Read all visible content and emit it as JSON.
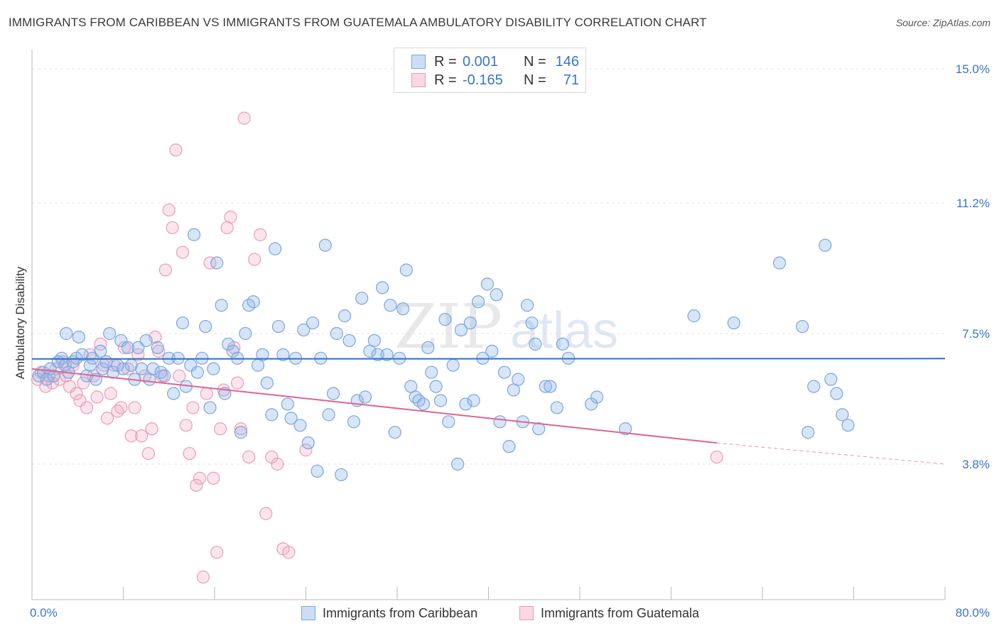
{
  "title": "IMMIGRANTS FROM CARIBBEAN VS IMMIGRANTS FROM GUATEMALA AMBULATORY DISABILITY CORRELATION CHART",
  "source": "Source: ZipAtlas.com",
  "watermark": "ZIPatlas",
  "stats": [
    {
      "r_label": "R =",
      "r_value": "0.001",
      "n_label": "N =",
      "n_value": "146",
      "color": "#8fb5e8"
    },
    {
      "r_label": "R =",
      "r_value": "-0.165",
      "n_label": "N =",
      "n_value": "71",
      "color": "#f2a8c0"
    }
  ],
  "legend": [
    {
      "label": "Immigrants from Caribbean",
      "color": "#8fb5e8"
    },
    {
      "label": "Immigrants from Guatemala",
      "color": "#f2a8c0"
    }
  ],
  "colors": {
    "caribbean_fill": "rgba(143,181,232,0.35)",
    "caribbean_stroke": "#7aa6e0",
    "caribbean_line": "#2f6fc4",
    "guatemala_fill": "rgba(242,168,192,0.30)",
    "guatemala_stroke": "#ef9ab6",
    "guatemala_line": "#e0648f",
    "tick_label": "#3b73c8",
    "grid": "#e3e3e3"
  },
  "chart_data": {
    "type": "scatter",
    "title": "IMMIGRANTS FROM CARIBBEAN VS IMMIGRANTS FROM GUATEMALA AMBULATORY DISABILITY CORRELATION CHART",
    "xlabel": "",
    "ylabel": "Ambulatory Disability",
    "xlim": [
      0,
      80
    ],
    "ylim": [
      0,
      15.5
    ],
    "x_tick_labels": [
      "0.0%",
      "80.0%"
    ],
    "y_ticks": [
      3.8,
      7.5,
      11.2,
      15.0
    ],
    "y_tick_labels": [
      "3.8%",
      "7.5%",
      "11.2%",
      "15.0%"
    ],
    "grid": "horizontal dashed",
    "legend_position": "bottom-center",
    "series": [
      {
        "name": "Immigrants from Caribbean",
        "r": 0.001,
        "n": 146,
        "trend": {
          "x": [
            0,
            80
          ],
          "y": [
            6.78,
            6.79
          ]
        },
        "points": [
          [
            0.6,
            6.3
          ],
          [
            1.0,
            6.4
          ],
          [
            1.3,
            6.2
          ],
          [
            1.6,
            6.5
          ],
          [
            1.9,
            6.3
          ],
          [
            2.3,
            6.7
          ],
          [
            2.6,
            6.8
          ],
          [
            2.9,
            6.6
          ],
          [
            3.2,
            6.4
          ],
          [
            3.6,
            6.7
          ],
          [
            3.0,
            7.5
          ],
          [
            3.9,
            6.8
          ],
          [
            4.1,
            7.4
          ],
          [
            4.4,
            6.9
          ],
          [
            4.8,
            6.3
          ],
          [
            5.1,
            6.6
          ],
          [
            5.3,
            6.8
          ],
          [
            5.6,
            6.2
          ],
          [
            6.0,
            7.0
          ],
          [
            6.2,
            6.5
          ],
          [
            6.5,
            6.7
          ],
          [
            6.8,
            7.5
          ],
          [
            7.1,
            6.4
          ],
          [
            7.5,
            6.6
          ],
          [
            7.8,
            7.3
          ],
          [
            8.0,
            6.5
          ],
          [
            8.4,
            7.1
          ],
          [
            8.7,
            6.6
          ],
          [
            9.0,
            6.2
          ],
          [
            9.3,
            7.1
          ],
          [
            9.6,
            6.5
          ],
          [
            10.0,
            7.3
          ],
          [
            10.3,
            6.2
          ],
          [
            10.6,
            6.5
          ],
          [
            11.0,
            7.1
          ],
          [
            11.3,
            6.4
          ],
          [
            11.6,
            6.3
          ],
          [
            12.0,
            6.8
          ],
          [
            12.4,
            5.8
          ],
          [
            12.8,
            6.8
          ],
          [
            13.2,
            7.8
          ],
          [
            13.5,
            6.0
          ],
          [
            13.9,
            6.6
          ],
          [
            14.2,
            10.3
          ],
          [
            14.5,
            6.4
          ],
          [
            14.9,
            6.8
          ],
          [
            15.2,
            7.7
          ],
          [
            15.6,
            5.4
          ],
          [
            15.9,
            6.5
          ],
          [
            16.2,
            9.5
          ],
          [
            16.6,
            8.3
          ],
          [
            16.9,
            5.8
          ],
          [
            17.2,
            7.2
          ],
          [
            17.6,
            7.0
          ],
          [
            18.0,
            6.8
          ],
          [
            18.3,
            4.7
          ],
          [
            18.7,
            7.5
          ],
          [
            19.0,
            8.3
          ],
          [
            19.4,
            8.4
          ],
          [
            19.8,
            6.6
          ],
          [
            20.2,
            6.9
          ],
          [
            20.6,
            6.1
          ],
          [
            21.0,
            5.2
          ],
          [
            21.3,
            9.9
          ],
          [
            21.6,
            7.7
          ],
          [
            22.0,
            6.9
          ],
          [
            22.4,
            5.5
          ],
          [
            22.7,
            5.1
          ],
          [
            23.1,
            6.8
          ],
          [
            23.5,
            4.9
          ],
          [
            23.8,
            7.6
          ],
          [
            24.2,
            4.4
          ],
          [
            24.6,
            7.8
          ],
          [
            25.0,
            3.6
          ],
          [
            25.3,
            6.8
          ],
          [
            25.7,
            10.0
          ],
          [
            26.0,
            5.2
          ],
          [
            26.4,
            5.8
          ],
          [
            26.7,
            7.5
          ],
          [
            27.1,
            3.5
          ],
          [
            27.4,
            8.0
          ],
          [
            27.8,
            7.3
          ],
          [
            28.2,
            5.0
          ],
          [
            28.5,
            5.6
          ],
          [
            28.9,
            8.5
          ],
          [
            29.2,
            5.7
          ],
          [
            29.6,
            7.0
          ],
          [
            30.0,
            7.3
          ],
          [
            30.3,
            6.9
          ],
          [
            30.7,
            8.8
          ],
          [
            31.1,
            6.9
          ],
          [
            31.4,
            8.3
          ],
          [
            31.8,
            4.7
          ],
          [
            32.2,
            6.8
          ],
          [
            32.5,
            8.2
          ],
          [
            32.8,
            9.3
          ],
          [
            33.2,
            6.0
          ],
          [
            33.6,
            5.7
          ],
          [
            33.9,
            5.6
          ],
          [
            34.3,
            5.5
          ],
          [
            34.7,
            7.1
          ],
          [
            35.0,
            6.4
          ],
          [
            35.4,
            6.0
          ],
          [
            35.8,
            5.6
          ],
          [
            36.2,
            7.9
          ],
          [
            36.5,
            5.0
          ],
          [
            36.9,
            6.6
          ],
          [
            37.3,
            3.8
          ],
          [
            37.6,
            7.6
          ],
          [
            38.0,
            5.5
          ],
          [
            38.4,
            7.8
          ],
          [
            38.7,
            5.6
          ],
          [
            39.1,
            8.4
          ],
          [
            39.5,
            6.8
          ],
          [
            39.9,
            8.9
          ],
          [
            40.3,
            7.0
          ],
          [
            40.7,
            8.6
          ],
          [
            41.0,
            5.0
          ],
          [
            41.4,
            6.4
          ],
          [
            41.8,
            4.3
          ],
          [
            42.2,
            5.9
          ],
          [
            42.6,
            6.2
          ],
          [
            43.0,
            5.0
          ],
          [
            43.4,
            8.3
          ],
          [
            43.8,
            7.8
          ],
          [
            44.1,
            7.2
          ],
          [
            44.4,
            4.8
          ],
          [
            45.0,
            6.0
          ],
          [
            45.4,
            6.0
          ],
          [
            46.0,
            5.4
          ],
          [
            46.5,
            7.2
          ],
          [
            47.0,
            6.8
          ],
          [
            49.0,
            5.5
          ],
          [
            49.5,
            5.7
          ],
          [
            52.0,
            4.8
          ],
          [
            58.0,
            8.0
          ],
          [
            61.5,
            7.8
          ],
          [
            65.5,
            9.5
          ],
          [
            67.5,
            7.7
          ],
          [
            68.0,
            4.7
          ],
          [
            68.5,
            6.0
          ],
          [
            69.5,
            10.0
          ],
          [
            70.0,
            6.2
          ],
          [
            70.5,
            5.8
          ],
          [
            71.0,
            5.2
          ],
          [
            71.5,
            4.9
          ]
        ]
      },
      {
        "name": "Immigrants from Guatemala",
        "r": -0.165,
        "n": 71,
        "trend": {
          "x": [
            0,
            60
          ],
          "y": [
            6.5,
            4.4
          ]
        },
        "trend_dashed": {
          "x": [
            60,
            80
          ],
          "y": [
            4.4,
            3.8
          ]
        },
        "points": [
          [
            0.5,
            6.2
          ],
          [
            0.8,
            6.4
          ],
          [
            1.2,
            6.0
          ],
          [
            1.5,
            6.3
          ],
          [
            1.8,
            6.1
          ],
          [
            2.1,
            6.5
          ],
          [
            2.4,
            6.2
          ],
          [
            2.7,
            6.7
          ],
          [
            3.0,
            6.3
          ],
          [
            3.3,
            6.0
          ],
          [
            3.6,
            6.6
          ],
          [
            3.9,
            5.8
          ],
          [
            4.2,
            5.6
          ],
          [
            4.5,
            6.1
          ],
          [
            4.8,
            5.4
          ],
          [
            5.1,
            6.9
          ],
          [
            5.4,
            6.3
          ],
          [
            5.7,
            5.7
          ],
          [
            6.0,
            7.2
          ],
          [
            6.3,
            6.6
          ],
          [
            6.6,
            5.1
          ],
          [
            6.9,
            5.8
          ],
          [
            7.2,
            6.6
          ],
          [
            7.5,
            5.3
          ],
          [
            7.8,
            5.4
          ],
          [
            8.1,
            7.1
          ],
          [
            8.4,
            6.5
          ],
          [
            8.7,
            4.6
          ],
          [
            9.0,
            5.4
          ],
          [
            9.3,
            6.9
          ],
          [
            9.6,
            4.6
          ],
          [
            9.9,
            6.3
          ],
          [
            10.2,
            4.1
          ],
          [
            10.5,
            4.8
          ],
          [
            10.8,
            7.4
          ],
          [
            11.1,
            7.0
          ],
          [
            11.4,
            6.3
          ],
          [
            11.7,
            9.3
          ],
          [
            12.0,
            11.0
          ],
          [
            12.3,
            10.5
          ],
          [
            12.6,
            12.7
          ],
          [
            12.9,
            6.3
          ],
          [
            13.2,
            9.8
          ],
          [
            13.5,
            4.9
          ],
          [
            13.8,
            4.1
          ],
          [
            14.1,
            5.4
          ],
          [
            14.4,
            3.2
          ],
          [
            14.7,
            3.4
          ],
          [
            15.0,
            0.6
          ],
          [
            15.3,
            5.8
          ],
          [
            15.6,
            9.5
          ],
          [
            15.9,
            3.4
          ],
          [
            16.2,
            1.3
          ],
          [
            16.5,
            4.8
          ],
          [
            16.8,
            5.9
          ],
          [
            17.1,
            10.5
          ],
          [
            17.4,
            10.8
          ],
          [
            17.7,
            7.1
          ],
          [
            18.0,
            6.1
          ],
          [
            18.3,
            4.8
          ],
          [
            18.6,
            13.6
          ],
          [
            19.0,
            4.0
          ],
          [
            19.5,
            9.6
          ],
          [
            20.0,
            10.3
          ],
          [
            20.5,
            2.4
          ],
          [
            21.0,
            4.0
          ],
          [
            21.5,
            3.8
          ],
          [
            22.0,
            1.4
          ],
          [
            22.5,
            1.3
          ],
          [
            24.0,
            4.2
          ],
          [
            60.0,
            4.0
          ]
        ]
      }
    ]
  }
}
